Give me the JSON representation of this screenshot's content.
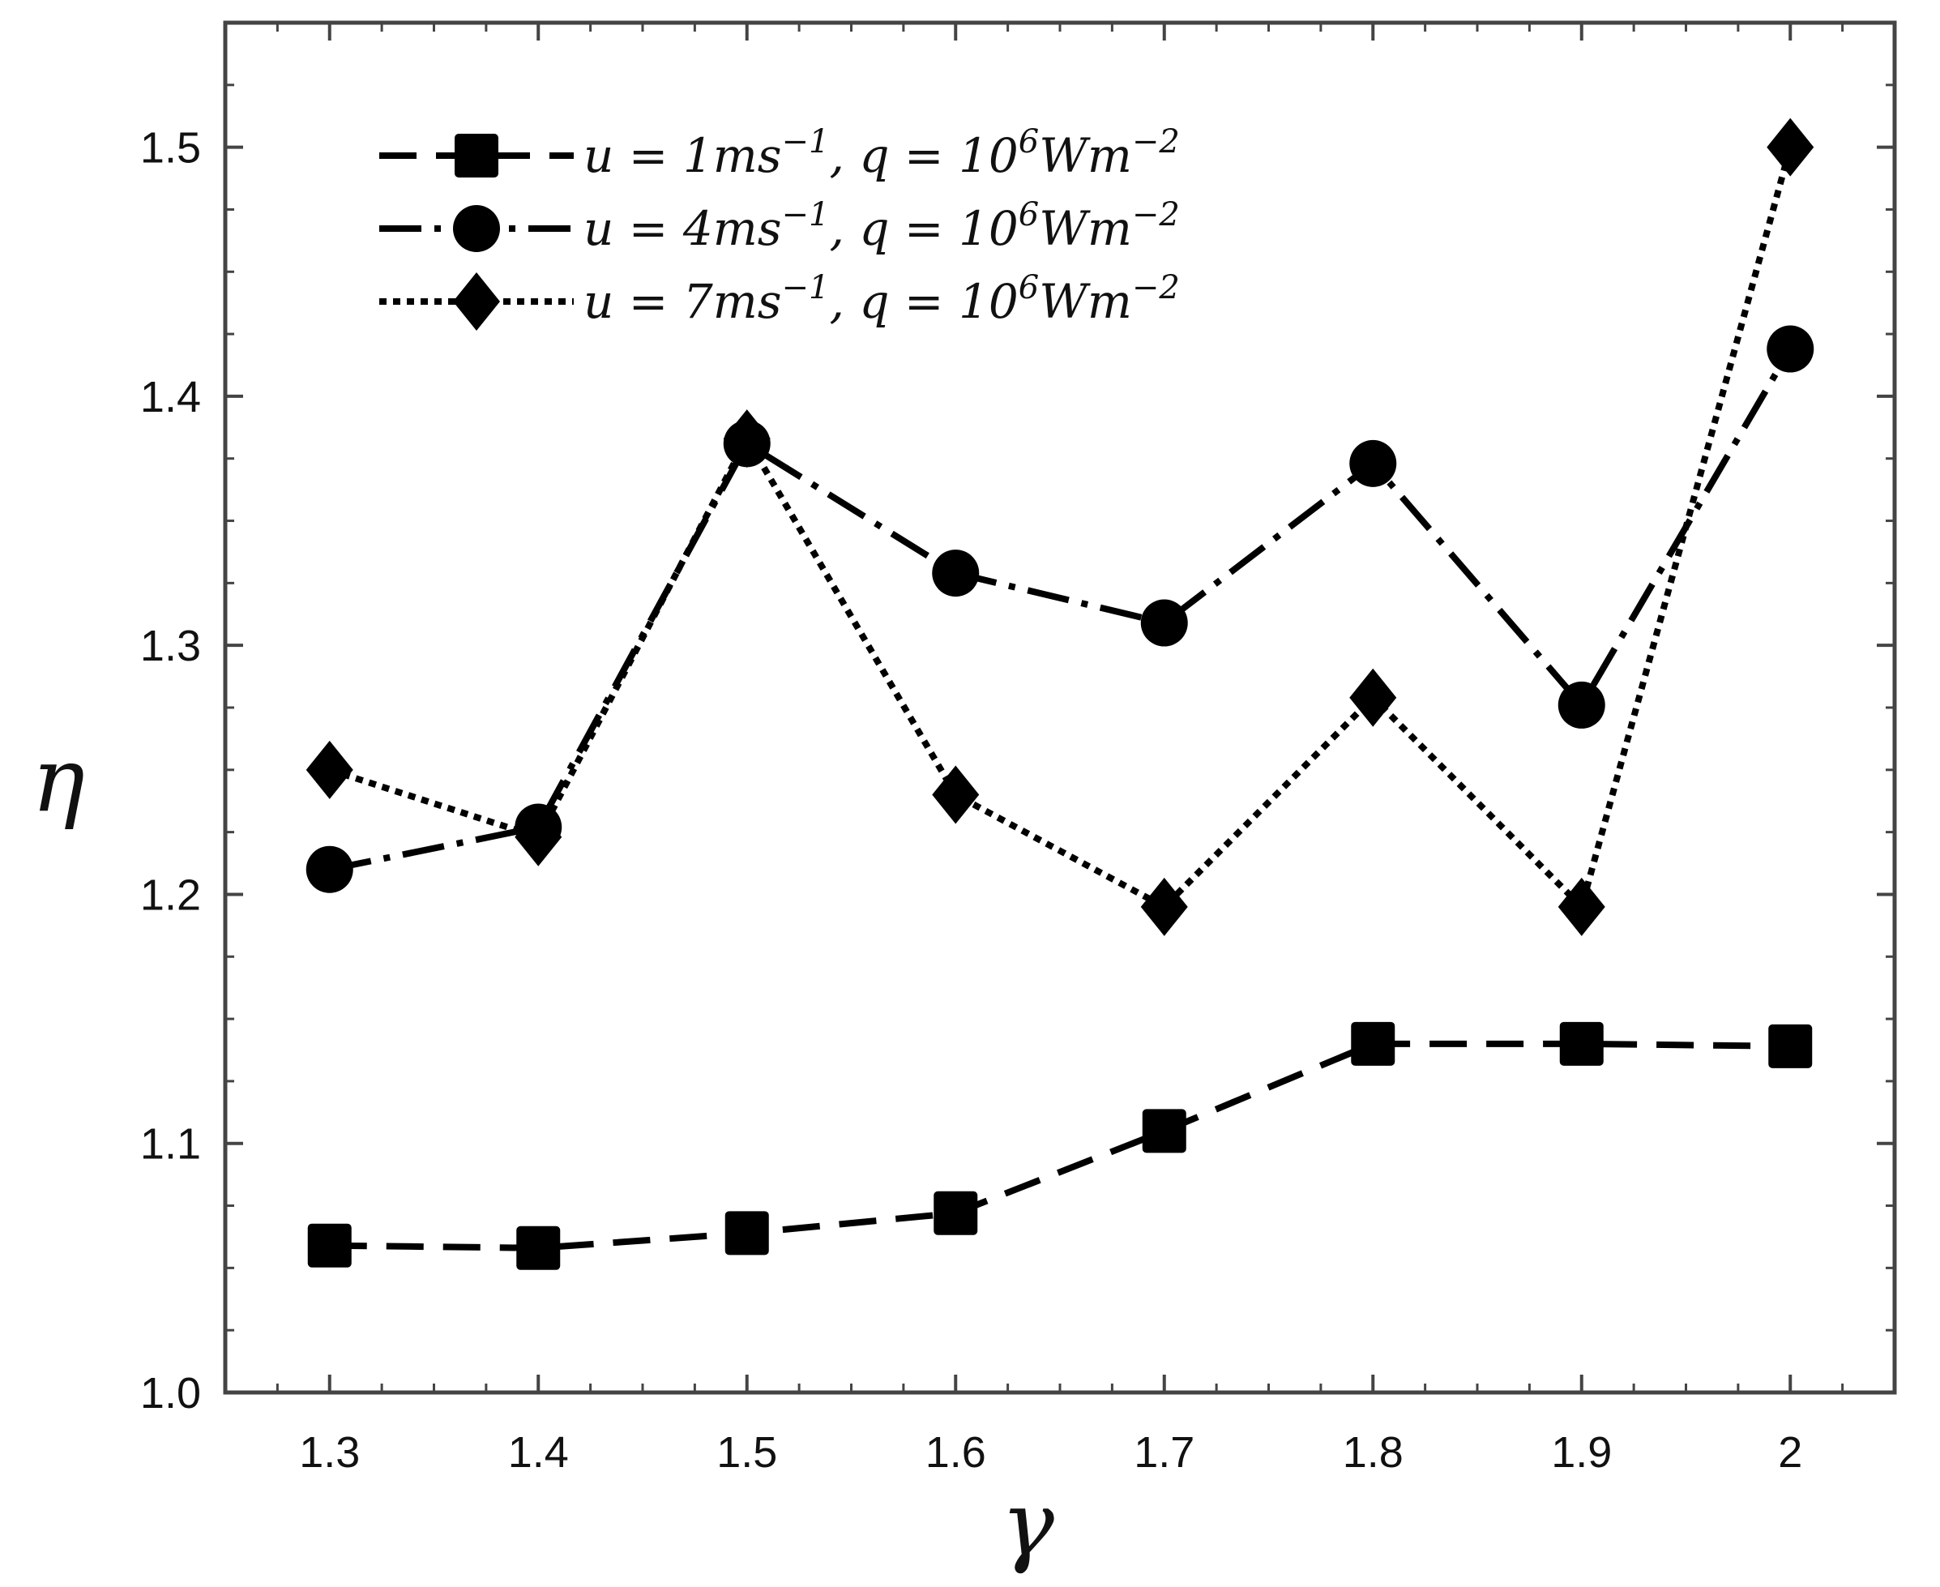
{
  "chart_data": {
    "type": "line",
    "title": "",
    "xlabel": "γ",
    "ylabel": "η",
    "xlim": [
      1.25,
      2.05
    ],
    "ylim": [
      1.0,
      1.55
    ],
    "x_ticks": [
      1.3,
      1.4,
      1.5,
      1.6,
      1.7,
      1.8,
      1.9,
      2.0
    ],
    "x_tick_labels": [
      "1.3",
      "1.4",
      "1.5",
      "1.6",
      "1.7",
      "1.8",
      "1.9",
      "2"
    ],
    "y_ticks": [
      1.0,
      1.1,
      1.2,
      1.3,
      1.4,
      1.5
    ],
    "y_tick_labels": [
      "1.0",
      "1.1",
      "1.2",
      "1.3",
      "1.4",
      "1.5"
    ],
    "grid": false,
    "legend_position": "top-left",
    "x": [
      1.3,
      1.4,
      1.5,
      1.6,
      1.7,
      1.8,
      1.9,
      2.0
    ],
    "series": [
      {
        "legend": {
          "u": "1",
          "q_exp": "6"
        },
        "marker": "square",
        "line_style": "dashed",
        "color": "#000000",
        "values": [
          1.059,
          1.058,
          1.064,
          1.072,
          1.105,
          1.14,
          1.14,
          1.139
        ]
      },
      {
        "legend": {
          "u": "4",
          "q_exp": "6"
        },
        "marker": "circle",
        "line_style": "long-dash-dot",
        "color": "#000000",
        "values": [
          1.21,
          1.227,
          1.381,
          1.329,
          1.309,
          1.373,
          1.276,
          1.419
        ]
      },
      {
        "legend": {
          "u": "7",
          "q_exp": "6"
        },
        "marker": "diamond",
        "line_style": "dotted",
        "color": "#000000",
        "values": [
          1.25,
          1.223,
          1.383,
          1.24,
          1.195,
          1.279,
          1.195,
          1.5
        ]
      }
    ]
  }
}
